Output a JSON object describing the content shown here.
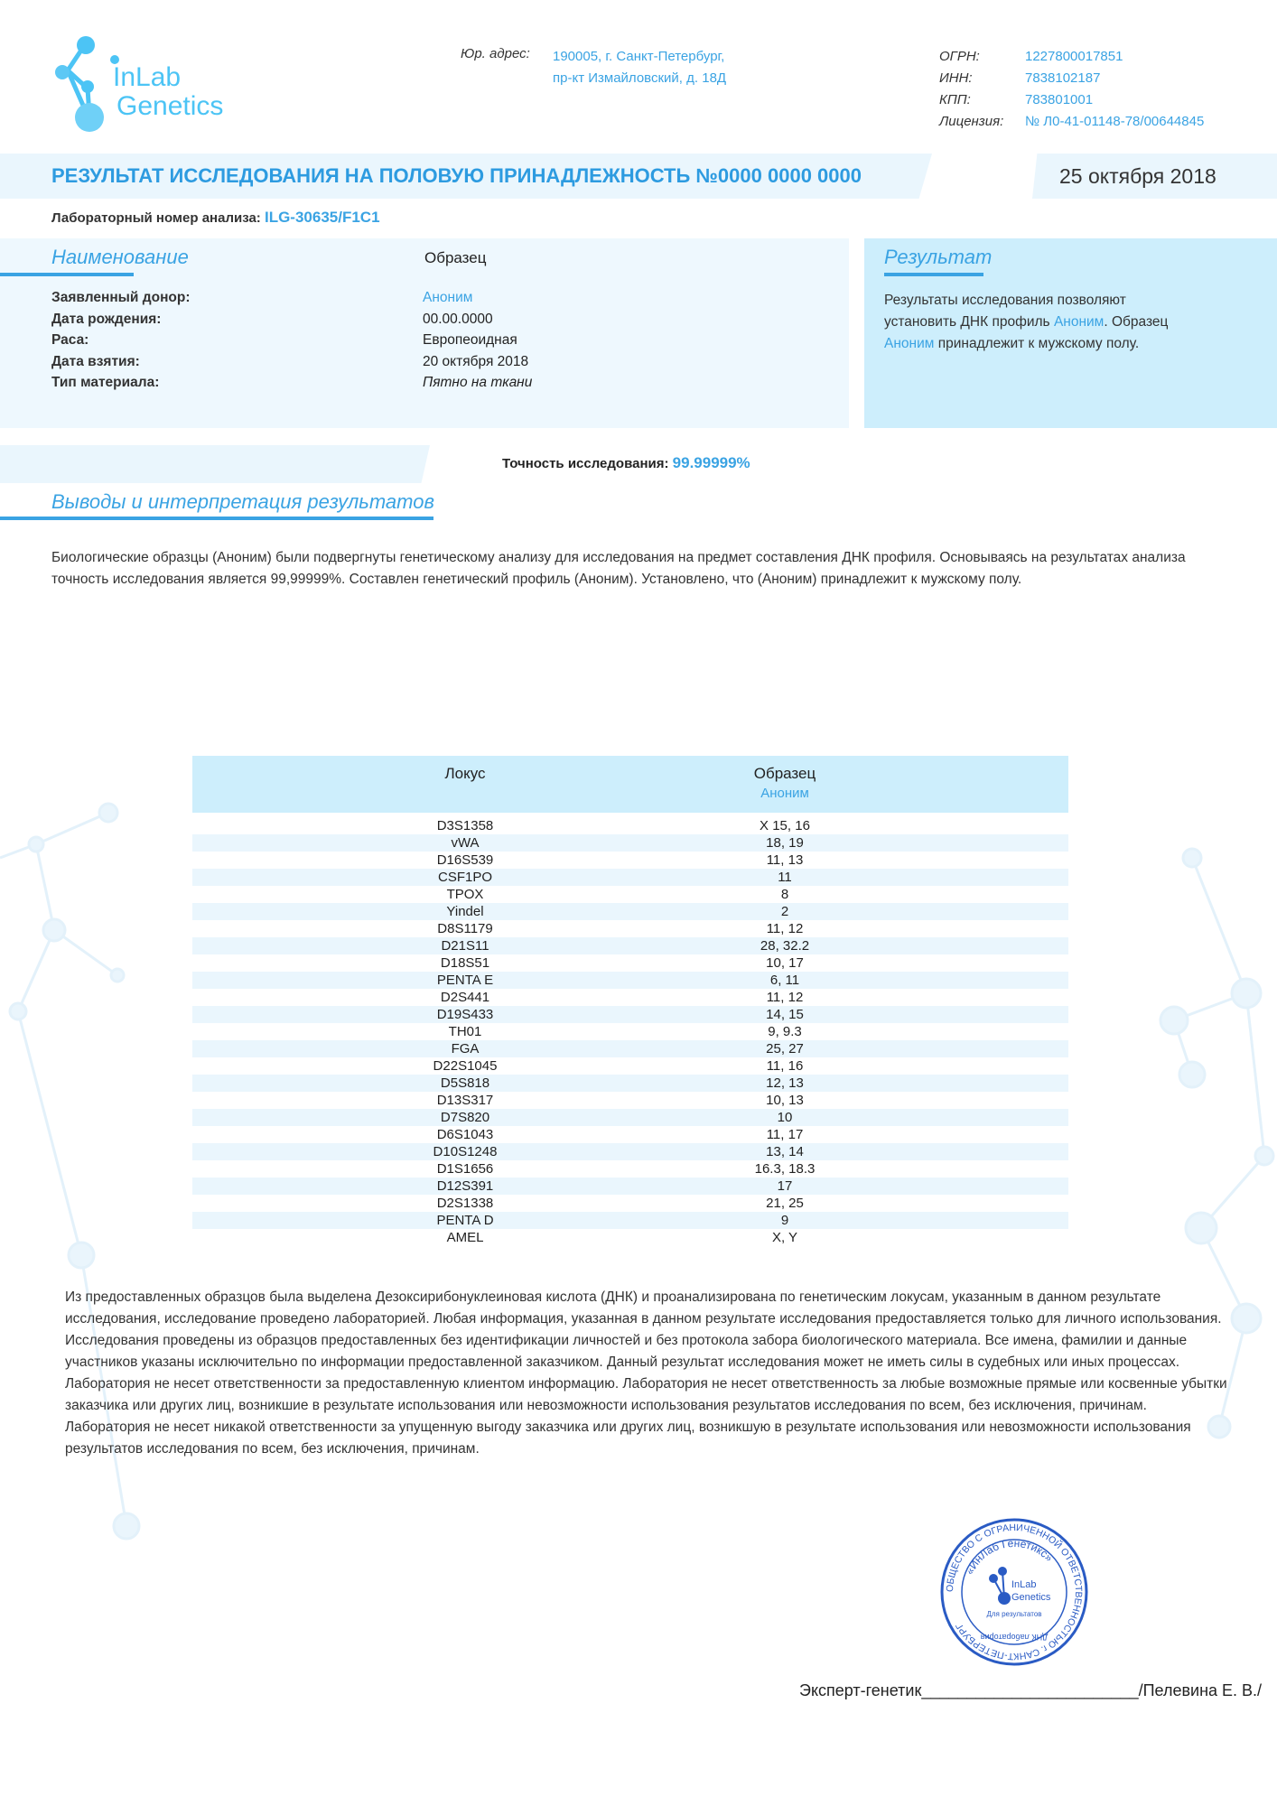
{
  "logo": {
    "text_line1": "InLab",
    "text_line2": "Genetics"
  },
  "header": {
    "address_label": "Юр. адрес:",
    "address_line1": "190005, г. Санкт-Петербург,",
    "address_line2": "пр-кт Измайловский, д. 18Д",
    "ids": [
      {
        "label": "ОГРН:",
        "value": "1227800017851"
      },
      {
        "label": "ИНН:",
        "value": "7838102187"
      },
      {
        "label": "КПП:",
        "value": "783801001"
      },
      {
        "label": "Лицензия:",
        "value": "№ Л0-41-01148-78/00644845"
      }
    ]
  },
  "title": {
    "text": "РЕЗУЛЬТАТ ИССЛЕДОВАНИЯ НА  ПОЛОВУЮ ПРИНАДЛЕЖНОСТЬ   №0000 0000 0000",
    "date": "25 октября 2018"
  },
  "lab_number": {
    "label": "Лабораторный номер анализа:",
    "value": "ILG-30635/F1C1"
  },
  "info": {
    "heading": "Наименование",
    "col_heading": "Образец",
    "rows": [
      {
        "label": "Заявленный донор:",
        "value": "Аноним"
      },
      {
        "label": "Дата рождения:",
        "value": "00.00.0000"
      },
      {
        "label": "Раса:",
        "value": "Европеоидная"
      },
      {
        "label": "Дата взятия:",
        "value": "20 октября 2018"
      },
      {
        "label": "Тип материала:",
        "value": "Пятно на ткани"
      }
    ]
  },
  "result": {
    "heading": "Результат",
    "t1": "Результаты исследования позволяют",
    "t2": "установить ДНК профиль ",
    "name1": "Аноним",
    "t3": ". Образец",
    "name2": "Аноним",
    "t4": " принадлежит к мужскому полу."
  },
  "accuracy": {
    "label": "Точность исследования:",
    "value": "99.99999%"
  },
  "conclusions": {
    "heading": "Выводы и интерпретация результатов",
    "text": "Биологические образцы (Аноним) были подвергнуты генетическому анализу для исследования на предмет составления ДНК профиля. Основываясь на результатах анализа точность исследования является 99,99999%. Составлен генетический профиль (Аноним). Установлено, что (Аноним) принадлежит к мужскому полу."
  },
  "table": {
    "col1": "Локус",
    "col2": "Образец",
    "col2_sub": "Аноним",
    "rows": [
      [
        "D3S1358",
        "X 15, 16"
      ],
      [
        "vWA",
        "18, 19"
      ],
      [
        "D16S539",
        "11, 13"
      ],
      [
        "CSF1PO",
        "11"
      ],
      [
        "TPOX",
        "8"
      ],
      [
        "Yindel",
        "2"
      ],
      [
        "D8S1179",
        "11, 12"
      ],
      [
        "D21S11",
        "28, 32.2"
      ],
      [
        "D18S51",
        "10, 17"
      ],
      [
        "PENTA E",
        "6, 11"
      ],
      [
        "D2S441",
        "11, 12"
      ],
      [
        "D19S433",
        "14, 15"
      ],
      [
        "TH01",
        "9, 9.3"
      ],
      [
        "FGA",
        "25, 27"
      ],
      [
        "D22S1045",
        "11, 16"
      ],
      [
        "D5S818",
        "12, 13"
      ],
      [
        "D13S317",
        "10, 13"
      ],
      [
        "D7S820",
        "10"
      ],
      [
        "D6S1043",
        "11, 17"
      ],
      [
        "D10S1248",
        "13, 14"
      ],
      [
        "D1S1656",
        "16.3, 18.3"
      ],
      [
        "D12S391",
        "17"
      ],
      [
        "D2S1338",
        "21, 25"
      ],
      [
        "PENTA D",
        "9"
      ],
      [
        "AMEL",
        "X, Y"
      ]
    ]
  },
  "disclaimer": "Из предоставленных образцов была выделена Дезоксирибонуклеиновая кислота (ДНК) и проанализирована по генетическим локусам, указанным в данном результате исследования, исследование проведено лабораторией. Любая информация, указанная в данном результате исследования предоставляется только для личного использования. Исследования проведены из образцов предоставленных без идентификации личностей и без протокола забора биологического материала.  Все имена, фамилии и данные участников указаны исключительно по информации предоставленной заказчиком. Данный результат исследования может не иметь силы в судебных или иных процессах. Лаборатория не несет ответственности за предоставленную клиентом информацию. Лаборатория не несет ответственность за любые возможные прямые или косвенные убытки заказчика или других лиц, возникшие в результате использования или невозможности использования результатов исследования по всем, без исключения, причинам.  Лаборатория не несет никакой ответственности за упущенную выгоду заказчика или других лиц, возникшую в результате использования или невозможности использования результатов исследования по всем, без исключения, причинам.",
  "signature": {
    "role": "Эксперт-генетик",
    "line": "________________________",
    "name": "/Пелевина Е. В./"
  },
  "stamp": {
    "outer": "ОБЩЕСТВО С ОГРАНИЧЕННОЙ ОТВЕТСТВЕННОСТЬЮ г. САНКТ-ПЕТЕРБУРГ",
    "inner": "«ИнЛаб Генетикс»",
    "logo": "InLab Genetics",
    "center": "Для результатов",
    "bottom": "ДНК лаборатория"
  },
  "colors": {
    "accent": "#3aa3e3",
    "band": "#eaf6fd",
    "result_bg": "#cdeefc",
    "stamp": "#2a5bc4"
  }
}
